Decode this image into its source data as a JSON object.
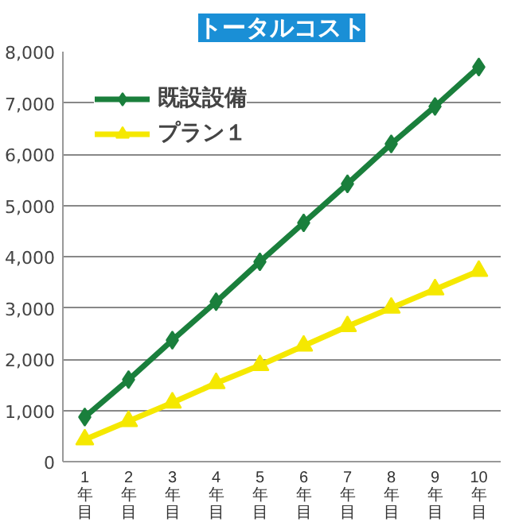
{
  "chart_data": {
    "type": "line",
    "title": "トータルコスト",
    "categories": [
      "1年目",
      "2年目",
      "3年目",
      "4年目",
      "5年目",
      "6年目",
      "7年目",
      "8年目",
      "9年目",
      "10年目"
    ],
    "series": [
      {
        "name": "既設設備",
        "color": "#1a7f3c",
        "marker": "diamond",
        "values": [
          870,
          1600,
          2370,
          3120,
          3900,
          4660,
          5420,
          6200,
          6930,
          7700
        ]
      },
      {
        "name": "プラン１",
        "color": "#f5e800",
        "marker": "triangle",
        "values": [
          430,
          790,
          1150,
          1530,
          1880,
          2260,
          2640,
          3000,
          3360,
          3720
        ]
      }
    ],
    "ylim": [
      0,
      8000
    ],
    "yticks": [
      0,
      {
        "value": 1000,
        "label": "1,000"
      },
      {
        "value": 2000,
        "label": "2,000"
      },
      {
        "value": 3000,
        "label": "3,000"
      },
      {
        "value": 4000,
        "label": "4,000"
      },
      {
        "value": 5000,
        "label": "5,000"
      },
      {
        "value": 6000,
        "label": "6,000"
      },
      {
        "value": 7000,
        "label": "7,000"
      },
      {
        "value": 8000,
        "label": "8,000"
      }
    ],
    "grid": "y",
    "legend": "top left",
    "line_style": "solid"
  }
}
